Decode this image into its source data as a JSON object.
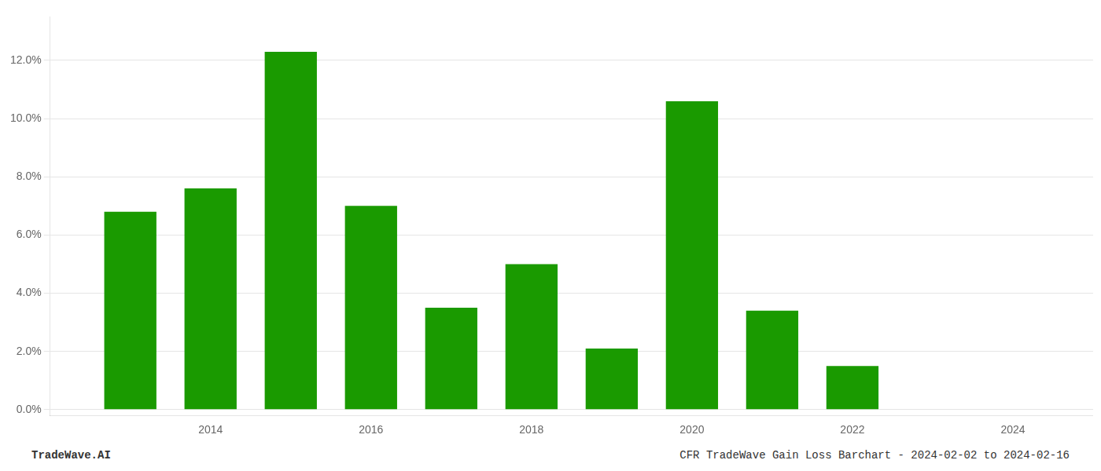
{
  "chart_data": {
    "type": "bar",
    "x": [
      2013,
      2014,
      2015,
      2016,
      2017,
      2018,
      2019,
      2020,
      2021,
      2022,
      2023
    ],
    "values": [
      0.068,
      0.076,
      0.123,
      0.07,
      0.035,
      0.05,
      0.021,
      0.106,
      0.034,
      0.015,
      0.0
    ],
    "color": "#1a9a00",
    "xlim": [
      2012.0,
      2025.0
    ],
    "xticks": [
      2014,
      2016,
      2018,
      2020,
      2022,
      2024
    ],
    "ylim": [
      -0.002,
      0.135
    ],
    "yticks": [
      {
        "value": 0.0,
        "label": "0.0%"
      },
      {
        "value": 0.02,
        "label": "2.0%"
      },
      {
        "value": 0.04,
        "label": "4.0%"
      },
      {
        "value": 0.06,
        "label": "6.0%"
      },
      {
        "value": 0.08,
        "label": "8.0%"
      },
      {
        "value": 0.1,
        "label": "10.0%"
      },
      {
        "value": 0.12,
        "label": "12.0%"
      }
    ],
    "grid": "y",
    "annotations": [
      "TradeWave.AI",
      "CFR TradeWave Gain Loss Barchart - 2024-02-02 to 2024-02-16"
    ]
  }
}
